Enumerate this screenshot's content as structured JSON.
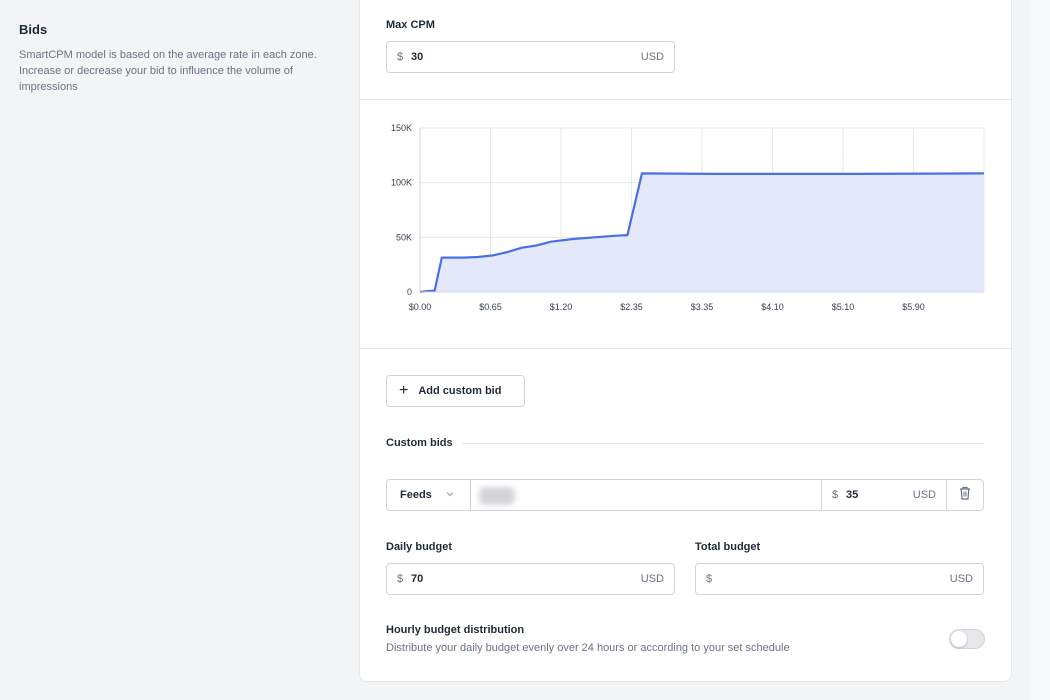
{
  "bids": {
    "title": "Bids",
    "description": "SmartCPM model is based on the average rate in each zone. Increase or decrease your bid to influence the volume of impressions"
  },
  "max_cpm": {
    "label": "Max CPM",
    "prefix": "$",
    "value": "30",
    "suffix": "USD"
  },
  "chart_data": {
    "type": "area",
    "title": "",
    "xlabel": "",
    "ylabel": "",
    "ylim": [
      0,
      150000
    ],
    "y_ticks": [
      "0",
      "50K",
      "100K",
      "150K"
    ],
    "x_ticks": [
      "$0.00",
      "$0.65",
      "$1.20",
      "$2.35",
      "$3.35",
      "$4.10",
      "$5.10",
      "$5.90"
    ],
    "grid": true,
    "color": "#4a6fe3",
    "fill": "#e3e8fb",
    "points": [
      [
        0,
        0
      ],
      [
        0.1,
        800
      ],
      [
        0.2,
        1200
      ],
      [
        0.3,
        31500
      ],
      [
        0.6,
        31500
      ],
      [
        0.8,
        32000
      ],
      [
        1.0,
        33500
      ],
      [
        1.2,
        36500
      ],
      [
        1.4,
        40500
      ],
      [
        1.6,
        42500
      ],
      [
        1.8,
        46000
      ],
      [
        2.1,
        48500
      ],
      [
        2.4,
        50000
      ],
      [
        2.7,
        51500
      ],
      [
        2.85,
        52000
      ],
      [
        3.05,
        108500
      ],
      [
        4.0,
        108000
      ],
      [
        5.0,
        108000
      ],
      [
        6.0,
        108000
      ],
      [
        7.0,
        108300
      ],
      [
        7.75,
        108500
      ]
    ]
  },
  "add_custom_bid": {
    "label": "Add custom bid"
  },
  "custom_bids": {
    "label": "Custom bids",
    "rows": [
      {
        "type": "Feeds",
        "prefix": "$",
        "value": "35",
        "suffix": "USD"
      }
    ]
  },
  "daily_budget": {
    "label": "Daily budget",
    "prefix": "$",
    "value": "70",
    "suffix": "USD"
  },
  "total_budget": {
    "label": "Total budget",
    "prefix": "$",
    "value": "",
    "suffix": "USD"
  },
  "hourly": {
    "title": "Hourly budget distribution",
    "description": "Distribute your daily budget evenly over 24 hours or according to your set schedule",
    "enabled": false
  }
}
